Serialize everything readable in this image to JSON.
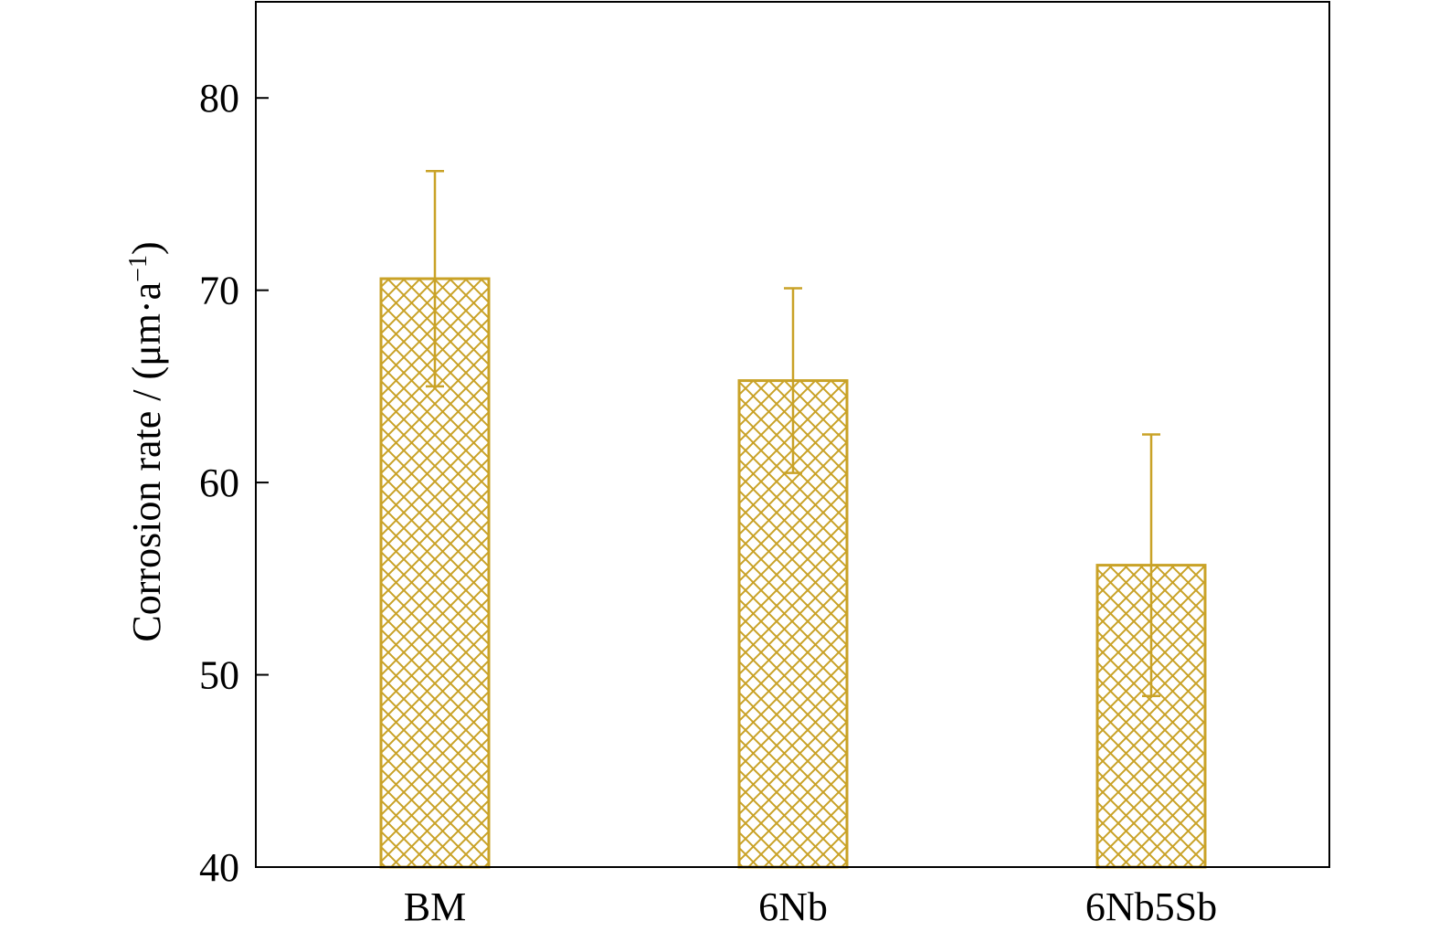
{
  "chart_data": {
    "type": "bar",
    "categories": [
      "BM",
      "6Nb",
      "6Nb5Sb"
    ],
    "series": [
      {
        "values": [
          70.6,
          65.3,
          55.7
        ],
        "error": [
          5.6,
          4.8,
          6.8
        ]
      }
    ],
    "xlabel": "",
    "ylabel": "Corrosion rate / (μm·a",
    "ylabel_superscript": "−1",
    "ylabel_close": ")",
    "ylim": [
      40,
      85
    ],
    "yticks": [
      40,
      50,
      60,
      70,
      80
    ],
    "grid": false,
    "legend": "none",
    "bar_color": "#C9A227",
    "bar_pattern": "crosshatch"
  }
}
